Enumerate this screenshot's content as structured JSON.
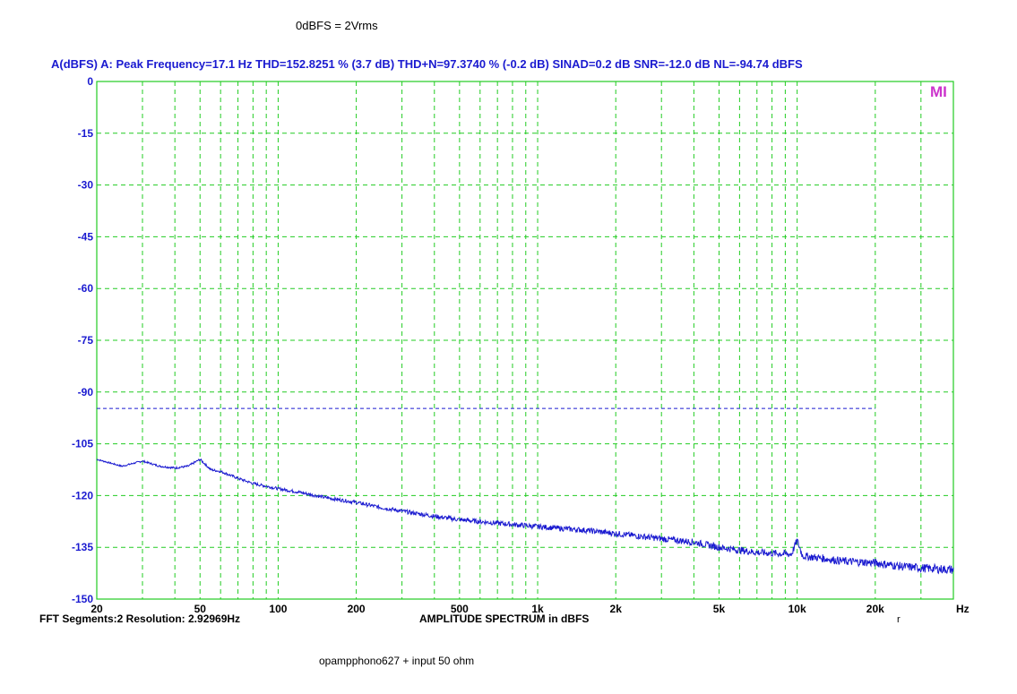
{
  "top_note": "0dBFS = 2Vrms",
  "header": "A(dBFS)  A: Peak Frequency=17.1 Hz  THD=152.8251 % (3.7 dB)  THD+N=97.3740 % (-0.2 dB)  SINAD=0.2 dB  SNR=-12.0 dB  NL=-94.74 dBFS",
  "footer_left": "FFT Segments:2     Resolution: 2.92969Hz",
  "footer_center": "AMPLITUDE SPECTRUM in dBFS",
  "bottom_note": "opampphono627 + input 50 ohm",
  "logo_text": "MI",
  "cursor_mark": "r",
  "colors": {
    "grid": "#22cc22",
    "frame": "#22cc22",
    "trace": "#1a1ad0",
    "noise_level": "#1a1ad0",
    "logo": "#cc33cc"
  },
  "chart_data": {
    "type": "line",
    "xscale": "log",
    "xlim": [
      20,
      40000
    ],
    "ylim": [
      -150,
      0
    ],
    "xticks": [
      {
        "value": 20,
        "label": "20"
      },
      {
        "value": 50,
        "label": "50"
      },
      {
        "value": 100,
        "label": "100"
      },
      {
        "value": 200,
        "label": "200"
      },
      {
        "value": 500,
        "label": "500"
      },
      {
        "value": 1000,
        "label": "1k"
      },
      {
        "value": 2000,
        "label": "2k"
      },
      {
        "value": 5000,
        "label": "5k"
      },
      {
        "value": 10000,
        "label": "10k"
      },
      {
        "value": 20000,
        "label": "20k"
      }
    ],
    "x_unit_label": "Hz",
    "yticks": [
      0,
      -15,
      -30,
      -45,
      -60,
      -75,
      -90,
      -105,
      -120,
      -135,
      -150
    ],
    "grid": true,
    "noise_level_line": {
      "value": -94.74,
      "x_from": 20,
      "x_to": 20000
    },
    "series": [
      {
        "x": [
          20,
          25,
          30,
          35,
          40,
          45,
          50,
          55,
          60,
          70,
          80,
          100,
          120,
          150,
          200,
          250,
          300,
          400,
          500,
          700,
          1000,
          1500,
          2000,
          3000,
          4000,
          5000,
          7000,
          9500,
          10000,
          10500,
          12000,
          15000,
          20000,
          25000,
          30000,
          40000
        ],
        "y": [
          -109.5,
          -111.5,
          -110.0,
          -111.5,
          -112.0,
          -111.5,
          -109.5,
          -112.5,
          -113.0,
          -115.0,
          -116.5,
          -118.0,
          -119.0,
          -120.5,
          -122.0,
          -123.5,
          -124.5,
          -126.0,
          -127.0,
          -128.0,
          -129.0,
          -130.0,
          -131.0,
          -132.5,
          -133.5,
          -135.0,
          -136.5,
          -137.0,
          -133.0,
          -137.5,
          -138.0,
          -139.0,
          -139.5,
          -140.5,
          -141.0,
          -141.5
        ]
      }
    ]
  }
}
